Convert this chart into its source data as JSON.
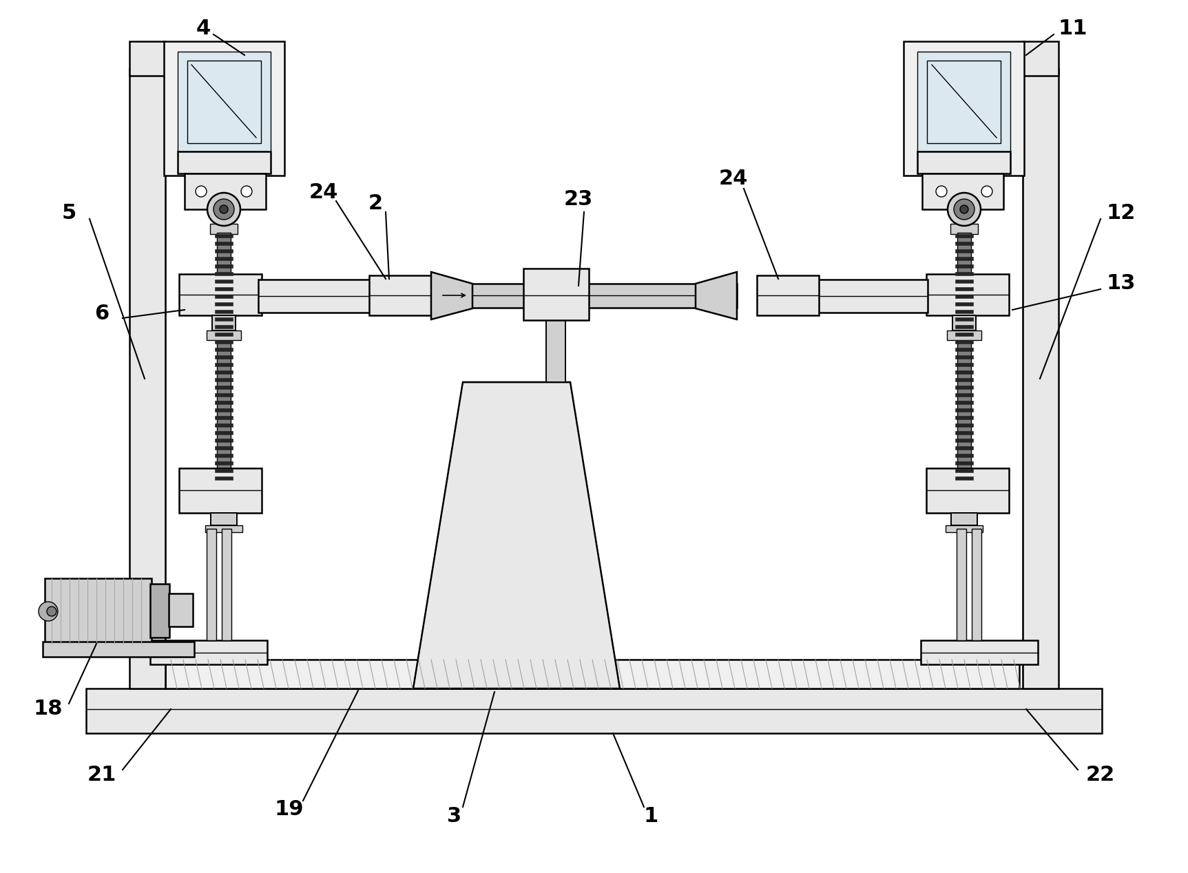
{
  "bg_color": "#ffffff",
  "lc": "#000000",
  "lw_main": 1.8,
  "lw_thin": 1.0,
  "lw_med": 1.4,
  "gray1": "#f0f0f0",
  "gray2": "#e8e8e8",
  "gray3": "#d0d0d0",
  "gray4": "#b0b0b0",
  "gray5": "#808080",
  "gray6": "#404040",
  "blue_gray": "#dce8f0",
  "label_fs": 22,
  "ann_lw": 1.5
}
